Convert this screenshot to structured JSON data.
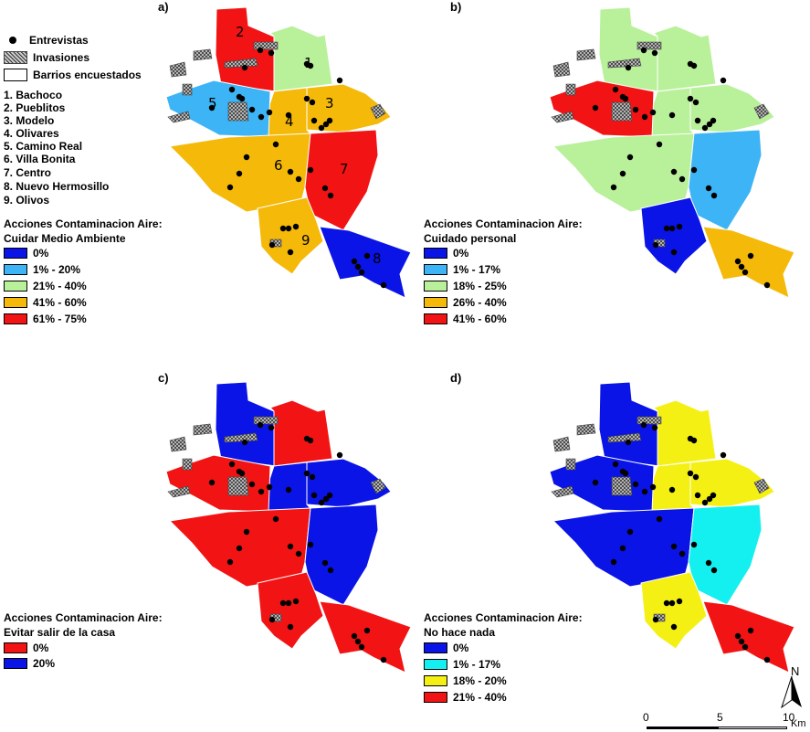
{
  "panels": [
    {
      "tag": "a)",
      "title1": "Acciones Contaminacion Aire:",
      "title2": "Cuidar Medio Ambiente",
      "legend": [
        {
          "label": "0%",
          "color": "#0a14e6"
        },
        {
          "label": "1% - 20%",
          "color": "#3cb4f5"
        },
        {
          "label": "21% - 40%",
          "color": "#b9f09a"
        },
        {
          "label": "41% - 60%",
          "color": "#f5b90a"
        },
        {
          "label": "61% - 75%",
          "color": "#f21414"
        }
      ],
      "zones": [
        "#f21414",
        "#b9f09a",
        "#f5b90a",
        "#f5b90a",
        "#3cb4f5",
        "#f5b90a",
        "#f21414",
        "#0a14e6",
        "#f5b90a"
      ]
    },
    {
      "tag": "b)",
      "title1": "Acciones Contaminacion Aire:",
      "title2": "Cuidado personal",
      "legend": [
        {
          "label": "0%",
          "color": "#0a14e6"
        },
        {
          "label": "1% - 17%",
          "color": "#3cb4f5"
        },
        {
          "label": "18% - 25%",
          "color": "#b9f09a"
        },
        {
          "label": "26% - 40%",
          "color": "#f5b90a"
        },
        {
          "label": "41% - 60%",
          "color": "#f21414"
        }
      ],
      "zones": [
        "#b9f09a",
        "#b9f09a",
        "#b9f09a",
        "#b9f09a",
        "#f21414",
        "#b9f09a",
        "#3cb4f5",
        "#f5b90a",
        "#0a14e6"
      ]
    },
    {
      "tag": "c)",
      "title1": "Acciones Contaminacion Aire:",
      "title2": "Evitar salir de la casa",
      "legend": [
        {
          "label": "0%",
          "color": "#f21414"
        },
        {
          "label": "20%",
          "color": "#0a14e6"
        }
      ],
      "zones": [
        "#0a14e6",
        "#f21414",
        "#0a14e6",
        "#0a14e6",
        "#f21414",
        "#f21414",
        "#0a14e6",
        "#f21414",
        "#f21414"
      ]
    },
    {
      "tag": "d)",
      "title1": "Acciones Contaminacion Aire:",
      "title2": "No hace nada",
      "legend": [
        {
          "label": "0%",
          "color": "#0a14e6"
        },
        {
          "label": "1% - 17%",
          "color": "#14f0f0"
        },
        {
          "label": "18% - 20%",
          "color": "#f5f014"
        },
        {
          "label": "21% - 40%",
          "color": "#f21414"
        }
      ],
      "zones": [
        "#0a14e6",
        "#f5f014",
        "#f5f014",
        "#f5f014",
        "#0a14e6",
        "#0a14e6",
        "#14f0f0",
        "#f21414",
        "#f5f014"
      ]
    }
  ],
  "map_legend": {
    "entrevistas": "Entrevistas",
    "invasiones": "Invasiones",
    "barrios": "Barrios encuestados"
  },
  "neighborhoods": [
    "1. Bachoco",
    "2. Pueblitos",
    "3. Modelo",
    "4. Olivares",
    "5. Camino Real",
    "6. Villa Bonita",
    "7. Centro",
    "8. Nuevo Hermosillo",
    "9. Olivos"
  ],
  "zone_numbers": [
    "1",
    "2",
    "3",
    "4",
    "5",
    "6",
    "7",
    "8",
    "9"
  ],
  "scale": {
    "ticks": [
      "0",
      "5",
      "10"
    ],
    "unit": "Km"
  },
  "north": "N"
}
